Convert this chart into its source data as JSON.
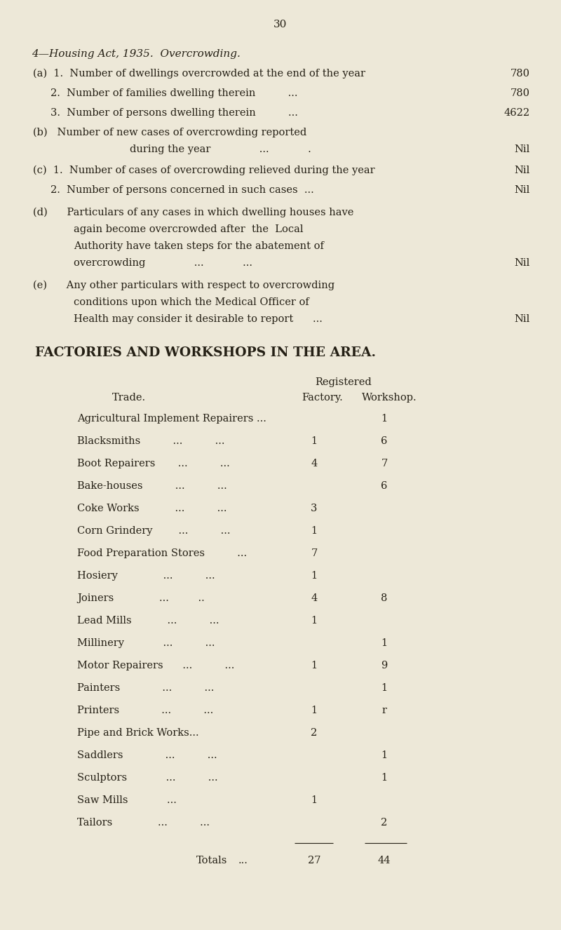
{
  "bg_color": "#ede8d8",
  "text_color": "#252015",
  "page_number": "30",
  "section_title_1": "4—Housing Act, 1935.  Overcrowding.",
  "factories_heading": "FACTORIES AND WORKSHOPS IN THE AREA.",
  "col_header_registered": "Registered",
  "col_header_trade": "Trade.",
  "col_header_factory": "Factory.",
  "col_header_workshop": "Workshop.",
  "totals_label": "Totals",
  "totals_dots": "...",
  "total_factory": "27",
  "total_workshop": "44"
}
